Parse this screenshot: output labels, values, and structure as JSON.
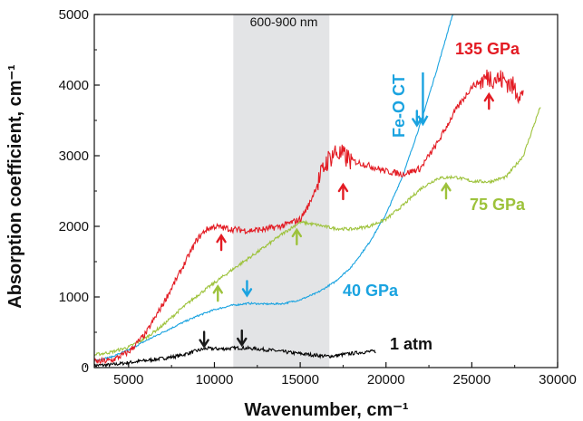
{
  "chart_data": {
    "type": "line",
    "xlabel": "Wavenumber, cm⁻¹",
    "ylabel": "Absorption coefficient, cm⁻¹",
    "xlim": [
      3000,
      30000
    ],
    "ylim": [
      0,
      5000
    ],
    "x_ticks": [
      "5000",
      "10000",
      "15000",
      "20000",
      "25000",
      "30000"
    ],
    "y_ticks": [
      "0",
      "1000",
      "2000",
      "3000",
      "4000",
      "5000"
    ],
    "shaded_band": {
      "label": "600-900 nm",
      "x_range": [
        11100,
        16700
      ],
      "color": "#e3e4e6"
    },
    "series": [
      {
        "name": "1 atm",
        "color": "#000000",
        "x": [
          3000,
          4000,
          5000,
          6000,
          7000,
          8000,
          9000,
          9500,
          10500,
          11500,
          12500,
          13500,
          14500,
          15500,
          16500,
          17000,
          17500,
          18000,
          18500,
          19000,
          19400
        ],
        "y": [
          30,
          40,
          70,
          100,
          130,
          170,
          240,
          270,
          265,
          280,
          265,
          240,
          210,
          185,
          160,
          165,
          185,
          200,
          215,
          225,
          230
        ],
        "noise": 25,
        "markers": [
          {
            "x": 9400,
            "y": 300
          },
          {
            "x": 11600,
            "y": 320
          }
        ],
        "marker_color": "#1a1a1a"
      },
      {
        "name": "40 GPa",
        "color": "#1aa3e0",
        "x": [
          3000,
          4000,
          5000,
          6000,
          7000,
          8000,
          9000,
          10000,
          11000,
          12000,
          13000,
          14000,
          15000,
          16000,
          17000,
          18000,
          19000,
          20000,
          21000,
          22000,
          23000,
          24000
        ],
        "y": [
          100,
          150,
          250,
          380,
          500,
          620,
          730,
          820,
          880,
          910,
          900,
          905,
          960,
          1060,
          1210,
          1430,
          1760,
          2170,
          2730,
          3450,
          4250,
          5100
        ],
        "noise": 12,
        "markers": [
          {
            "x": 11900,
            "y": 1020
          },
          {
            "x": 21800,
            "y": 3430
          }
        ],
        "marker_color": "#1aa3e0"
      },
      {
        "name": "75 GPa",
        "color": "#9dc23b",
        "x": [
          3000,
          4000,
          5000,
          6000,
          7000,
          8000,
          9000,
          10000,
          11000,
          12000,
          13000,
          14000,
          15000,
          16000,
          17000,
          18000,
          19000,
          20000,
          21000,
          22000,
          23000,
          24000,
          25000,
          26000,
          27000,
          28000,
          29000
        ],
        "y": [
          180,
          220,
          290,
          420,
          600,
          820,
          1020,
          1200,
          1380,
          1550,
          1720,
          1900,
          2060,
          2020,
          1970,
          1960,
          2000,
          2100,
          2300,
          2530,
          2680,
          2700,
          2640,
          2630,
          2700,
          3000,
          3700
        ],
        "noise": 22,
        "markers": [
          {
            "x": 10200,
            "y": 1150
          },
          {
            "x": 14800,
            "y": 1950
          },
          {
            "x": 23500,
            "y": 2600
          }
        ],
        "marker_color": "#9dc23b"
      },
      {
        "name": "135 GPa",
        "color": "#e31b23",
        "x": [
          3000,
          4000,
          5000,
          6000,
          7000,
          8000,
          9000,
          9500,
          10000,
          11000,
          12000,
          13000,
          14000,
          15000,
          15500,
          16000,
          16500,
          17000,
          17500,
          18000,
          19000,
          20000,
          21000,
          22000,
          23000,
          24000,
          25000,
          26000,
          27000,
          27500,
          28000
        ],
        "y": [
          80,
          100,
          220,
          480,
          900,
          1350,
          1820,
          1950,
          2000,
          1960,
          1940,
          1960,
          2010,
          2100,
          2300,
          2600,
          2900,
          3050,
          3000,
          2930,
          2860,
          2780,
          2740,
          2820,
          3180,
          3620,
          3980,
          4120,
          4060,
          3950,
          3830
        ],
        "noise": 45,
        "markers": [
          {
            "x": 10400,
            "y": 1870
          },
          {
            "x": 17500,
            "y": 2590
          },
          {
            "x": 26000,
            "y": 3870
          }
        ],
        "marker_color": "#e31b23"
      }
    ],
    "annotations": [
      {
        "text": "135 GPa",
        "color": "#e31b23"
      },
      {
        "text": "75 GPa",
        "color": "#9dc23b"
      },
      {
        "text": "40 GPa",
        "color": "#1aa3e0"
      },
      {
        "text": "1 atm",
        "color": "#111111"
      },
      {
        "text": "Fe-O CT",
        "color": "#1aa3e0"
      }
    ]
  }
}
